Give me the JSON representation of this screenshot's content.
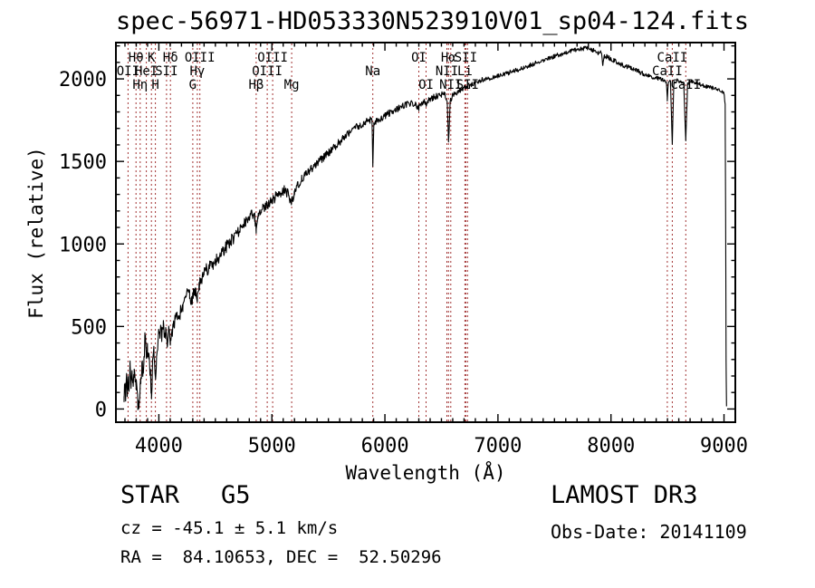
{
  "title": "spec-56971-HD053330N523910V01_sp04-124.fits",
  "annotations": {
    "object_type": "STAR",
    "subclass": "G5",
    "cz_text": "cz = -45.1 ± 5.1 km/s",
    "ra_dec_text": "RA =  84.10653, DEC =  52.50296",
    "survey": "LAMOST DR3",
    "obs_date_text": "Obs-Date: 20141109"
  },
  "chart_data": {
    "type": "line",
    "title": "spec-56971-HD053330N523910V01_sp04-124.fits",
    "xlabel": "Wavelength (Å)",
    "ylabel": "Flux (relative)",
    "xlim": [
      3620,
      9100
    ],
    "ylim": [
      -80,
      2220
    ],
    "x_major_ticks": [
      4000,
      5000,
      6000,
      7000,
      8000,
      9000
    ],
    "x_minor_step": 100,
    "y_major_ticks": [
      0,
      500,
      1000,
      1500,
      2000
    ],
    "y_minor_step": 100,
    "grid": false,
    "legend": null,
    "series_color": "#000000",
    "spectral_line_color": "#a23333",
    "spectral_lines": [
      {
        "label": "OII",
        "wavelength": 3727,
        "row": 2
      },
      {
        "label": "Hθ",
        "wavelength": 3798,
        "row": 1
      },
      {
        "label": "Hη",
        "wavelength": 3835,
        "row": 3
      },
      {
        "label": "HeI",
        "wavelength": 3889,
        "row": 2
      },
      {
        "label": "K",
        "wavelength": 3934,
        "row": 1
      },
      {
        "label": "H",
        "wavelength": 3969,
        "row": 3
      },
      {
        "label": "SII",
        "wavelength": 4068,
        "row": 2
      },
      {
        "label": "Hδ",
        "wavelength": 4102,
        "row": 1
      },
      {
        "label": "G",
        "wavelength": 4300,
        "row": 3
      },
      {
        "label": "Hγ",
        "wavelength": 4340,
        "row": 2
      },
      {
        "label": "OIII",
        "wavelength": 4363,
        "row": 1
      },
      {
        "label": "Hβ",
        "wavelength": 4861,
        "row": 3
      },
      {
        "label": "OIII",
        "wavelength": 4959,
        "row": 2
      },
      {
        "label": "OIII",
        "wavelength": 5007,
        "row": 1
      },
      {
        "label": "Mg",
        "wavelength": 5175,
        "row": 3
      },
      {
        "label": "Na",
        "wavelength": 5893,
        "row": 2
      },
      {
        "label": "OI",
        "wavelength": 6300,
        "row": 1
      },
      {
        "label": "OI",
        "wavelength": 6364,
        "row": 3
      },
      {
        "label": "NII",
        "wavelength": 6548,
        "row": 2
      },
      {
        "label": "Hα",
        "wavelength": 6563,
        "row": 1
      },
      {
        "label": "NII",
        "wavelength": 6583,
        "row": 3
      },
      {
        "label": "Li",
        "wavelength": 6708,
        "row": 2
      },
      {
        "label": "SII",
        "wavelength": 6716,
        "row": 1
      },
      {
        "label": "SII",
        "wavelength": 6731,
        "row": 3
      },
      {
        "label": "CaII",
        "wavelength": 8498,
        "row": 2
      },
      {
        "label": "CaII",
        "wavelength": 8542,
        "row": 1
      },
      {
        "label": "CaII",
        "wavelength": 8662,
        "row": 3
      }
    ],
    "spectrum_points": [
      [
        3692,
        20
      ],
      [
        3698,
        150
      ],
      [
        3704,
        60
      ],
      [
        3712,
        190
      ],
      [
        3720,
        100
      ],
      [
        3727,
        200
      ],
      [
        3736,
        120
      ],
      [
        3745,
        240
      ],
      [
        3754,
        170
      ],
      [
        3763,
        230
      ],
      [
        3772,
        140
      ],
      [
        3782,
        205
      ],
      [
        3792,
        145
      ],
      [
        3800,
        150
      ],
      [
        3812,
        55
      ],
      [
        3820,
        15
      ],
      [
        3830,
        70
      ],
      [
        3840,
        185
      ],
      [
        3850,
        280
      ],
      [
        3858,
        205
      ],
      [
        3868,
        320
      ],
      [
        3878,
        430
      ],
      [
        3888,
        330
      ],
      [
        3900,
        355
      ],
      [
        3912,
        305
      ],
      [
        3924,
        225
      ],
      [
        3934,
        85
      ],
      [
        3944,
        250
      ],
      [
        3956,
        335
      ],
      [
        3969,
        185
      ],
      [
        3981,
        350
      ],
      [
        3995,
        440
      ],
      [
        4010,
        470
      ],
      [
        4025,
        450
      ],
      [
        4040,
        490
      ],
      [
        4058,
        460
      ],
      [
        4076,
        415
      ],
      [
        4090,
        480
      ],
      [
        4102,
        405
      ],
      [
        4116,
        470
      ],
      [
        4130,
        520
      ],
      [
        4150,
        545
      ],
      [
        4170,
        560
      ],
      [
        4192,
        585
      ],
      [
        4212,
        620
      ],
      [
        4232,
        655
      ],
      [
        4252,
        700
      ],
      [
        4272,
        690
      ],
      [
        4292,
        655
      ],
      [
        4306,
        705
      ],
      [
        4322,
        725
      ],
      [
        4340,
        685
      ],
      [
        4356,
        745
      ],
      [
        4372,
        785
      ],
      [
        4392,
        815
      ],
      [
        4420,
        840
      ],
      [
        4450,
        865
      ],
      [
        4480,
        885
      ],
      [
        4512,
        905
      ],
      [
        4544,
        935
      ],
      [
        4576,
        965
      ],
      [
        4608,
        995
      ],
      [
        4644,
        1025
      ],
      [
        4682,
        1055
      ],
      [
        4720,
        1090
      ],
      [
        4758,
        1125
      ],
      [
        4796,
        1155
      ],
      [
        4830,
        1185
      ],
      [
        4848,
        1160
      ],
      [
        4861,
        1075
      ],
      [
        4876,
        1185
      ],
      [
        4908,
        1210
      ],
      [
        4940,
        1230
      ],
      [
        4972,
        1245
      ],
      [
        5004,
        1265
      ],
      [
        5040,
        1290
      ],
      [
        5076,
        1310
      ],
      [
        5112,
        1325
      ],
      [
        5148,
        1300
      ],
      [
        5168,
        1245
      ],
      [
        5182,
        1265
      ],
      [
        5200,
        1320
      ],
      [
        5230,
        1360
      ],
      [
        5264,
        1395
      ],
      [
        5300,
        1425
      ],
      [
        5348,
        1455
      ],
      [
        5396,
        1485
      ],
      [
        5444,
        1515
      ],
      [
        5492,
        1545
      ],
      [
        5540,
        1575
      ],
      [
        5588,
        1610
      ],
      [
        5636,
        1645
      ],
      [
        5684,
        1675
      ],
      [
        5732,
        1700
      ],
      [
        5780,
        1720
      ],
      [
        5828,
        1740
      ],
      [
        5868,
        1752
      ],
      [
        5886,
        1745
      ],
      [
        5893,
        1480
      ],
      [
        5902,
        1725
      ],
      [
        5930,
        1750
      ],
      [
        5966,
        1762
      ],
      [
        6002,
        1778
      ],
      [
        6046,
        1796
      ],
      [
        6090,
        1812
      ],
      [
        6134,
        1828
      ],
      [
        6178,
        1840
      ],
      [
        6222,
        1850
      ],
      [
        6266,
        1846
      ],
      [
        6300,
        1822
      ],
      [
        6330,
        1858
      ],
      [
        6355,
        1862
      ],
      [
        6364,
        1838
      ],
      [
        6382,
        1872
      ],
      [
        6420,
        1885
      ],
      [
        6460,
        1896
      ],
      [
        6500,
        1905
      ],
      [
        6535,
        1902
      ],
      [
        6552,
        1860
      ],
      [
        6563,
        1608
      ],
      [
        6576,
        1858
      ],
      [
        6596,
        1898
      ],
      [
        6624,
        1915
      ],
      [
        6660,
        1930
      ],
      [
        6700,
        1946
      ],
      [
        6744,
        1960
      ],
      [
        6788,
        1974
      ],
      [
        6832,
        1988
      ],
      [
        6876,
        1998
      ],
      [
        6920,
        2004
      ],
      [
        6964,
        2010
      ],
      [
        7008,
        2018
      ],
      [
        7052,
        2028
      ],
      [
        7096,
        2037
      ],
      [
        7140,
        2046
      ],
      [
        7184,
        2056
      ],
      [
        7228,
        2068
      ],
      [
        7272,
        2080
      ],
      [
        7316,
        2092
      ],
      [
        7360,
        2104
      ],
      [
        7404,
        2115
      ],
      [
        7448,
        2125
      ],
      [
        7492,
        2134
      ],
      [
        7536,
        2145
      ],
      [
        7580,
        2155
      ],
      [
        7624,
        2164
      ],
      [
        7668,
        2172
      ],
      [
        7712,
        2178
      ],
      [
        7756,
        2184
      ],
      [
        7800,
        2188
      ],
      [
        7844,
        2172
      ],
      [
        7888,
        2155
      ],
      [
        7915,
        2158
      ],
      [
        7928,
        2088
      ],
      [
        7942,
        2140
      ],
      [
        7980,
        2128
      ],
      [
        8024,
        2112
      ],
      [
        8068,
        2096
      ],
      [
        8112,
        2082
      ],
      [
        8156,
        2070
      ],
      [
        8200,
        2058
      ],
      [
        8244,
        2044
      ],
      [
        8288,
        2030
      ],
      [
        8332,
        2018
      ],
      [
        8376,
        2008
      ],
      [
        8420,
        2002
      ],
      [
        8460,
        1996
      ],
      [
        8490,
        1984
      ],
      [
        8498,
        1872
      ],
      [
        8508,
        1988
      ],
      [
        8526,
        1982
      ],
      [
        8542,
        1612
      ],
      [
        8556,
        1978
      ],
      [
        8586,
        1990
      ],
      [
        8616,
        1984
      ],
      [
        8644,
        1972
      ],
      [
        8662,
        1628
      ],
      [
        8678,
        1974
      ],
      [
        8712,
        1986
      ],
      [
        8748,
        1978
      ],
      [
        8784,
        1968
      ],
      [
        8820,
        1958
      ],
      [
        8856,
        1952
      ],
      [
        8892,
        1946
      ],
      [
        8928,
        1940
      ],
      [
        8958,
        1932
      ],
      [
        8984,
        1924
      ],
      [
        9002,
        1908
      ],
      [
        9010,
        1840
      ],
      [
        9014,
        1200
      ],
      [
        9018,
        300
      ],
      [
        9022,
        25
      ]
    ],
    "noise_profile": [
      [
        3692,
        60
      ],
      [
        3800,
        55
      ],
      [
        3950,
        48
      ],
      [
        4100,
        45
      ],
      [
        4300,
        42
      ],
      [
        4600,
        38
      ],
      [
        4900,
        33
      ],
      [
        5200,
        28
      ],
      [
        5600,
        24
      ],
      [
        6000,
        21
      ],
      [
        6400,
        19
      ],
      [
        6800,
        16
      ],
      [
        7200,
        14
      ],
      [
        7600,
        13
      ],
      [
        8000,
        14
      ],
      [
        8400,
        13
      ],
      [
        8800,
        12
      ],
      [
        9022,
        10
      ]
    ],
    "noise_seed": 20141109
  }
}
